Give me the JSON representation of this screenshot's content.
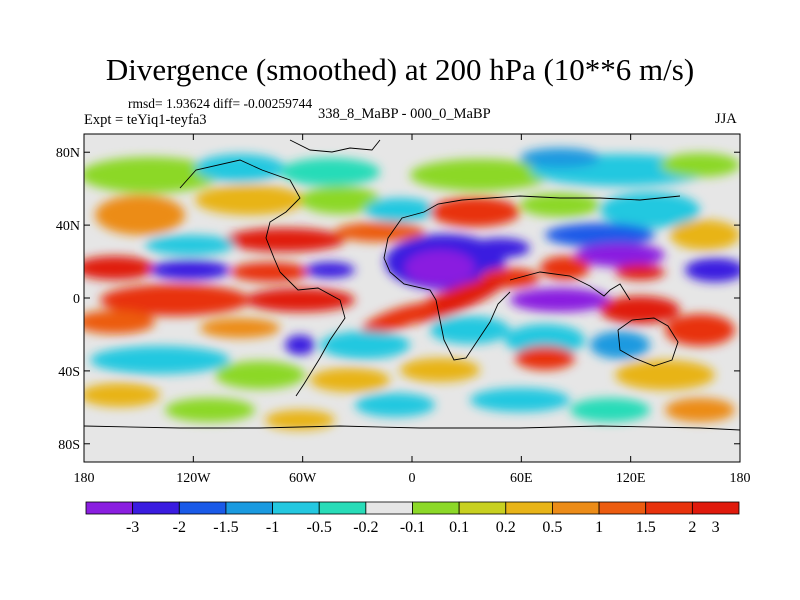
{
  "header": {
    "title": "Divergence (smoothed) at 200 hPa (10**6 m/s)",
    "rmsd_line": "rmsd= 1.93624 diff= -0.00259744",
    "experiment": "Expt = teYiq1-teyfa3",
    "comparison": "338_8_MaBP - 000_0_MaBP",
    "season": "JJA"
  },
  "map": {
    "lon_range": [
      -180,
      180
    ],
    "lat_range": [
      -90,
      90
    ],
    "lat_ticks": [
      {
        "value": 80,
        "label": "80N"
      },
      {
        "value": 40,
        "label": "40N"
      },
      {
        "value": 0,
        "label": "0"
      },
      {
        "value": -40,
        "label": "40S"
      },
      {
        "value": -80,
        "label": "80S"
      }
    ],
    "lon_ticks": [
      {
        "value": -180,
        "label": "180"
      },
      {
        "value": -120,
        "label": "120W"
      },
      {
        "value": -60,
        "label": "60W"
      },
      {
        "value": 0,
        "label": "0"
      },
      {
        "value": 60,
        "label": "60E"
      },
      {
        "value": 120,
        "label": "120E"
      },
      {
        "value": 180,
        "label": "180"
      }
    ]
  },
  "colorbar": {
    "colors": [
      "#8a1ee0",
      "#3a1ce0",
      "#1a5ae8",
      "#1a9ae0",
      "#24c8e0",
      "#28dcb8",
      "#e6e6e6",
      "#8cd828",
      "#c8d020",
      "#e8b418",
      "#ec8c18",
      "#ec5c10",
      "#e8320c",
      "#e01a0c"
    ],
    "labels": [
      "-3",
      "-2",
      "-1.5",
      "-1",
      "-0.5",
      "-0.2",
      "-0.1",
      "0.1",
      "0.2",
      "0.5",
      "1",
      "1.5",
      "2",
      "3"
    ]
  }
}
